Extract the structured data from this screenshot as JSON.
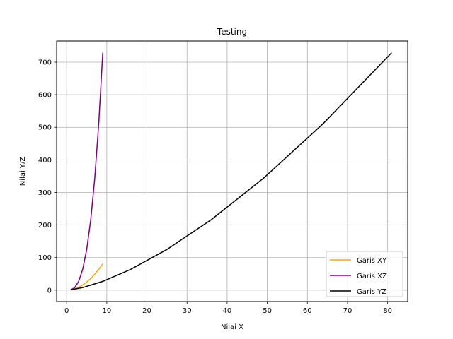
{
  "chart_data": {
    "type": "line",
    "title": "Testing",
    "xlabel": "Nilai X",
    "ylabel": "Nilai Y/Z",
    "xlim": [
      -2.5,
      85
    ],
    "ylim": [
      -35,
      765
    ],
    "x_ticks": [
      0,
      10,
      20,
      30,
      40,
      50,
      60,
      70,
      80
    ],
    "y_ticks": [
      0,
      100,
      200,
      300,
      400,
      500,
      600,
      700
    ],
    "grid": true,
    "legend_position": "lower-right",
    "series": [
      {
        "name": "Garis XY",
        "color": "#ffa500",
        "x": [
          1,
          2,
          3,
          4,
          5,
          6,
          7,
          8,
          9
        ],
        "y": [
          1,
          4,
          9,
          16,
          25,
          36,
          49,
          64,
          81
        ]
      },
      {
        "name": "Garis XZ",
        "color": "#800080",
        "x": [
          1,
          2,
          3,
          4,
          5,
          6,
          7,
          8,
          9
        ],
        "y": [
          1,
          8,
          27,
          64,
          125,
          216,
          343,
          512,
          729
        ]
      },
      {
        "name": "Garis YZ",
        "color": "#000000",
        "x": [
          1,
          4,
          9,
          16,
          25,
          36,
          49,
          64,
          81
        ],
        "y": [
          1,
          8,
          27,
          64,
          125,
          216,
          343,
          512,
          729
        ]
      }
    ]
  }
}
